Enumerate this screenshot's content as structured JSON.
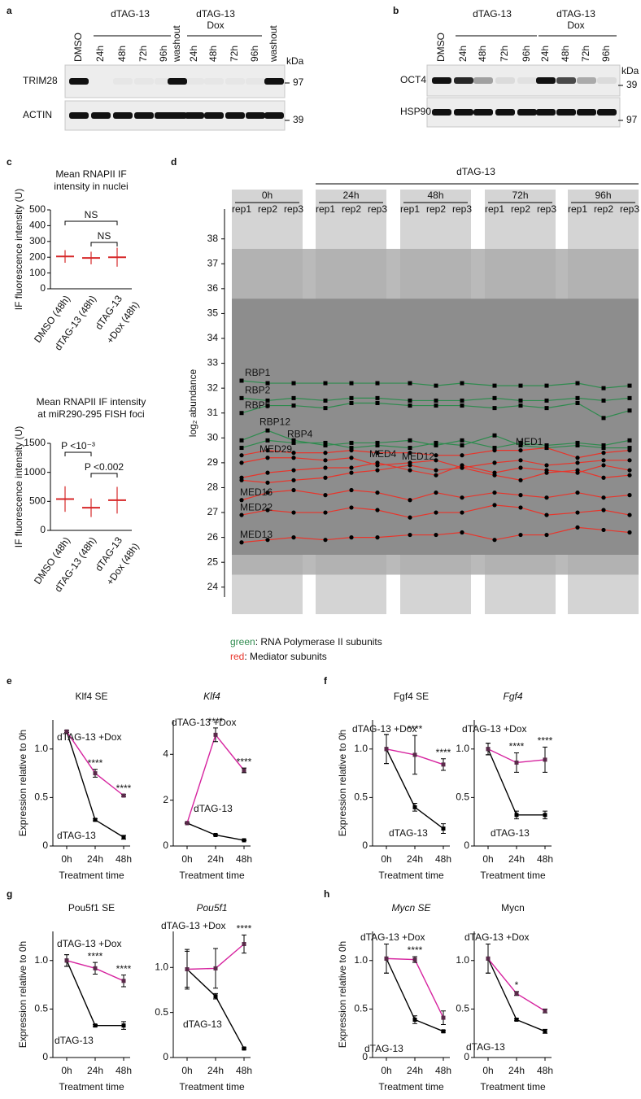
{
  "blots": [
    {
      "label": "a",
      "groups": [
        {
          "lines": [
            "dTAG-13"
          ]
        },
        {
          "lines": [
            "dTAG-13",
            "Dox"
          ]
        }
      ],
      "lanes": [
        "DMSO",
        "24h",
        "48h",
        "72h",
        "96h",
        "washout",
        "24h",
        "48h",
        "72h",
        "96h",
        "washout"
      ],
      "rows": [
        "TRIM28",
        "ACTIN"
      ],
      "unit": "kDa",
      "markers": [
        97,
        39
      ]
    },
    {
      "label": "b",
      "groups": [
        {
          "lines": [
            "dTAG-13"
          ]
        },
        {
          "lines": [
            "dTAG-13",
            "Dox"
          ]
        }
      ],
      "lanes": [
        "DMSO",
        "24h",
        "48h",
        "72h",
        "96h",
        "24h",
        "48h",
        "72h",
        "96h"
      ],
      "rows": [
        "OCT4",
        "HSP90"
      ],
      "unit": "kDa",
      "markers": [
        39,
        97
      ]
    }
  ],
  "panel_c": {
    "label": "c",
    "charts": [
      {
        "type": "dot_plot",
        "title": [
          "Mean RNAPII IF",
          "intensity in nuclei"
        ],
        "ylabel": "IF fluorescence intensity (U)",
        "categories": [
          [
            "DMSO (48h)"
          ],
          [
            "dTAG-13 (48h)"
          ],
          [
            "dTAG-13",
            "+Dox (48h)"
          ]
        ],
        "means": [
          205,
          195,
          200
        ],
        "sd": [
          40,
          40,
          60
        ],
        "color": "#d62728",
        "ylim": [
          0,
          500
        ],
        "yticks": [
          0,
          100,
          200,
          300,
          400,
          500
        ],
        "annotations": [
          "NS",
          "NS"
        ]
      },
      {
        "type": "dot_plot",
        "title": [
          "Mean RNAPII IF intensity",
          "at miR290-295 FISH foci"
        ],
        "ylabel": "IF fluorescence intensity (U)",
        "categories": [
          [
            "DMSO (48h)"
          ],
          [
            "dTAG-13 (48h)"
          ],
          [
            "dTAG-13",
            "+Dox (48h)"
          ]
        ],
        "means": [
          540,
          390,
          520
        ],
        "sd": [
          220,
          160,
          230
        ],
        "color": "#d62728",
        "ylim": [
          0,
          1500
        ],
        "yticks": [
          0,
          500,
          1000,
          1500
        ],
        "annotations": [
          "P <10⁻³",
          "P <0.002"
        ]
      }
    ]
  },
  "panel_d": {
    "label": "d",
    "type": "line",
    "treatment": "dTAG-13",
    "ylabel": "log₂ abundance",
    "groups": [
      {
        "name": "0h",
        "reps": [
          "rep1",
          "rep2",
          "rep3"
        ]
      },
      {
        "name": "24h",
        "reps": [
          "rep1",
          "rep2",
          "rep3"
        ]
      },
      {
        "name": "48h",
        "reps": [
          "rep1",
          "rep2",
          "rep3"
        ]
      },
      {
        "name": "72h",
        "reps": [
          "rep1",
          "rep2",
          "rep3"
        ]
      },
      {
        "name": "96h",
        "reps": [
          "rep1",
          "rep2",
          "rep3"
        ]
      }
    ],
    "ylim": [
      23.6,
      39.2
    ],
    "yticks": [
      24,
      25,
      26,
      27,
      28,
      29,
      30,
      31,
      32,
      33,
      34,
      35,
      36,
      37,
      38
    ],
    "series": [
      {
        "name": "RBP1",
        "color": "#2e8b4e",
        "marker": "square",
        "values": [
          32.3,
          32.2,
          32.2,
          32.2,
          32.2,
          32.2,
          32.2,
          32.1,
          32.2,
          32.1,
          32.1,
          32.1,
          32.2,
          32.0,
          32.1
        ]
      },
      {
        "name": "RBP2",
        "color": "#2e8b4e",
        "marker": "square",
        "values": [
          31.6,
          31.5,
          31.6,
          31.5,
          31.6,
          31.6,
          31.5,
          31.5,
          31.5,
          31.6,
          31.5,
          31.5,
          31.6,
          31.5,
          31.6
        ]
      },
      {
        "name": "RBP5",
        "color": "#2e8b4e",
        "marker": "square",
        "values": [
          31.0,
          31.3,
          31.3,
          31.2,
          31.4,
          31.4,
          31.3,
          31.3,
          31.3,
          31.2,
          31.3,
          31.2,
          31.4,
          30.8,
          31.1
        ]
      },
      {
        "name": "RBP12",
        "color": "#2e8b4e",
        "marker": "square",
        "values": [
          29.9,
          30.3,
          29.9,
          29.7,
          29.8,
          29.8,
          29.9,
          29.7,
          29.9,
          29.6,
          29.8,
          29.7,
          29.8,
          29.7,
          29.9
        ]
      },
      {
        "name": "RBP4",
        "color": "#2e8b4e",
        "marker": "square",
        "values": [
          29.6,
          29.9,
          29.8,
          29.8,
          29.6,
          29.7,
          29.6,
          29.8,
          29.7,
          30.1,
          29.7,
          29.6,
          29.7,
          29.6,
          29.6
        ]
      },
      {
        "name": "MED1",
        "color": "#e8352b",
        "marker": "circle",
        "values": [
          29.3,
          29.5,
          29.4,
          29.4,
          29.5,
          29.4,
          29.4,
          29.3,
          29.3,
          29.5,
          29.5,
          29.6,
          29.2,
          29.4,
          29.5
        ]
      },
      {
        "name": "MED29",
        "color": "#e8352b",
        "marker": "circle",
        "values": [
          29.0,
          29.2,
          29.2,
          29.1,
          29.2,
          28.9,
          29.0,
          29.1,
          28.8,
          29.0,
          29.1,
          28.9,
          29.0,
          29.1,
          29.1
        ]
      },
      {
        "name": "MED4",
        "color": "#e8352b",
        "marker": "circle",
        "values": [
          28.4,
          28.6,
          28.7,
          28.8,
          28.8,
          29.0,
          28.7,
          28.5,
          28.9,
          28.6,
          28.8,
          28.7,
          28.6,
          28.9,
          28.7
        ]
      },
      {
        "name": "MED12",
        "color": "#e8352b",
        "marker": "circle",
        "values": [
          28.3,
          28.2,
          28.3,
          28.4,
          28.6,
          28.7,
          28.9,
          28.7,
          28.8,
          28.5,
          28.3,
          28.6,
          28.7,
          28.4,
          28.5
        ]
      },
      {
        "name": "MED16",
        "color": "#e8352b",
        "marker": "circle",
        "values": [
          27.5,
          27.8,
          27.9,
          27.7,
          27.9,
          27.8,
          27.5,
          27.8,
          27.6,
          27.8,
          27.7,
          27.6,
          27.8,
          27.6,
          27.7
        ]
      },
      {
        "name": "MED22",
        "color": "#e8352b",
        "marker": "circle",
        "values": [
          26.9,
          27.1,
          27.0,
          27.0,
          27.2,
          27.1,
          26.8,
          27.0,
          27.0,
          27.3,
          27.2,
          26.9,
          27.0,
          27.1,
          26.9
        ]
      },
      {
        "name": "MED13",
        "color": "#e8352b",
        "marker": "circle",
        "values": [
          25.8,
          25.9,
          26.0,
          25.9,
          26.0,
          26.0,
          26.1,
          26.1,
          26.2,
          25.9,
          26.1,
          26.1,
          26.4,
          26.3,
          26.2
        ]
      }
    ],
    "legend": [
      {
        "key": "green",
        "text": ": RNA Polymerase II subunits",
        "color": "#2e8b4e"
      },
      {
        "key": "red",
        "text": ": Mediator subunits",
        "color": "#e8352b"
      }
    ]
  },
  "line_panels": [
    {
      "label": "e",
      "charts": [
        {
          "type": "line",
          "title": "Klf4 SE",
          "italic": false,
          "ylabel": "Expression relative to 0h",
          "xlabel": "Treatment time",
          "categories": [
            "0h",
            "24h",
            "48h"
          ],
          "ylim": [
            0,
            1.3
          ],
          "yticks": [
            0,
            0.5,
            {
              "value": 1,
              "label": "1.0"
            }
          ],
          "series": [
            {
              "name": "dTAG-13",
              "color": "#000000",
              "values": [
                1.18,
                0.27,
                0.09
              ],
              "errors": [
                0.01,
                0.01,
                0.02
              ]
            },
            {
              "name": "dTAG-13 +Dox",
              "color": "#d6249f",
              "values": [
                1.18,
                0.75,
                0.52
              ],
              "errors": [
                0.01,
                0.04,
                0.01
              ]
            }
          ],
          "annotations": [
            {
              "category": "24h",
              "text": "****"
            },
            {
              "category": "48h",
              "text": "****"
            }
          ]
        },
        {
          "type": "line",
          "title": "Klf4",
          "italic": true,
          "xlabel": "Treatment time",
          "categories": [
            "0h",
            "24h",
            "48h"
          ],
          "ylim": [
            0,
            5.5
          ],
          "yticks": [
            0,
            2,
            4
          ],
          "series": [
            {
              "name": "dTAG-13",
              "color": "#000000",
              "values": [
                1,
                0.48,
                0.25
              ],
              "errors": [
                0.02,
                0.02,
                0.02
              ]
            },
            {
              "name": "dTAG-13 +Dox",
              "color": "#d6249f",
              "values": [
                1,
                4.85,
                3.3
              ],
              "errors": [
                0.02,
                0.3,
                0.1
              ]
            }
          ],
          "annotations": [
            {
              "category": "24h",
              "text": "****"
            },
            {
              "category": "48h",
              "text": "****"
            }
          ]
        }
      ]
    },
    {
      "label": "f",
      "charts": [
        {
          "type": "line",
          "title": "Fgf4 SE",
          "italic": false,
          "ylabel": "Expression relative to 0h",
          "xlabel": "Treatment time",
          "categories": [
            "0h",
            "24h",
            "48h"
          ],
          "ylim": [
            0,
            1.3
          ],
          "yticks": [
            0,
            0.5,
            {
              "value": 1,
              "label": "1.0"
            }
          ],
          "series": [
            {
              "name": "dTAG-13",
              "color": "#000000",
              "values": [
                1.0,
                0.4,
                0.18
              ],
              "errors": [
                0.15,
                0.04,
                0.05
              ]
            },
            {
              "name": "dTAG-13 +Dox",
              "color": "#d6249f",
              "values": [
                1.0,
                0.94,
                0.84
              ],
              "errors": [
                0.15,
                0.2,
                0.06
              ]
            }
          ],
          "annotations": [
            {
              "category": "24h",
              "text": "****"
            },
            {
              "category": "48h",
              "text": "****"
            }
          ]
        },
        {
          "type": "line",
          "title": "Fgf4",
          "italic": true,
          "xlabel": "Treatment time",
          "categories": [
            "0h",
            "24h",
            "48h"
          ],
          "ylim": [
            0,
            1.3
          ],
          "yticks": [
            0,
            0.5,
            {
              "value": 1,
              "label": "1.0"
            }
          ],
          "series": [
            {
              "name": "dTAG-13",
              "color": "#000000",
              "values": [
                1.0,
                0.32,
                0.32
              ],
              "errors": [
                0.06,
                0.04,
                0.04
              ]
            },
            {
              "name": "dTAG-13 +Dox",
              "color": "#d6249f",
              "values": [
                1.0,
                0.86,
                0.89
              ],
              "errors": [
                0.06,
                0.1,
                0.13
              ]
            }
          ],
          "annotations": [
            {
              "category": "24h",
              "text": "****"
            },
            {
              "category": "48h",
              "text": "****"
            }
          ]
        }
      ]
    },
    {
      "label": "g",
      "charts": [
        {
          "type": "line",
          "title": "Pou5f1 SE",
          "italic": false,
          "ylabel": "Expression relative to 0h",
          "xlabel": "Treatment time",
          "categories": [
            "0h",
            "24h",
            "48h"
          ],
          "ylim": [
            0,
            1.3
          ],
          "yticks": [
            0,
            0.5,
            {
              "value": 1,
              "label": "1.0"
            }
          ],
          "series": [
            {
              "name": "dTAG-13",
              "color": "#000000",
              "values": [
                1.0,
                0.33,
                0.33
              ],
              "errors": [
                0.06,
                0.01,
                0.04
              ]
            },
            {
              "name": "dTAG-13 +Dox",
              "color": "#d6249f",
              "values": [
                1.0,
                0.92,
                0.79
              ],
              "errors": [
                0.06,
                0.06,
                0.06
              ]
            }
          ],
          "annotations": [
            {
              "category": "24h",
              "text": "****"
            },
            {
              "category": "48h",
              "text": "****"
            }
          ]
        },
        {
          "type": "line",
          "title": "Pou5f1",
          "italic": true,
          "xlabel": "Treatment time",
          "categories": [
            "0h",
            "24h",
            "48h"
          ],
          "ylim": [
            0,
            1.4
          ],
          "yticks": [
            0,
            0.5,
            {
              "value": 1,
              "label": "1.0"
            }
          ],
          "series": [
            {
              "name": "dTAG-13",
              "color": "#000000",
              "values": [
                0.98,
                0.68,
                0.1
              ],
              "errors": [
                0.2,
                0.03,
                0.01
              ]
            },
            {
              "name": "dTAG-13 +Dox",
              "color": "#d6249f",
              "values": [
                0.98,
                0.99,
                1.26
              ],
              "errors": [
                0.22,
                0.22,
                0.1
              ]
            }
          ],
          "annotations": [
            {
              "category": "48h",
              "text": "****"
            }
          ]
        }
      ]
    },
    {
      "label": "h",
      "charts": [
        {
          "type": "line",
          "title": "Mycn SE",
          "italic": true,
          "ylabel": "Expression relative to 0h",
          "xlabel": "Treatment time",
          "categories": [
            "0h",
            "24h",
            "48h"
          ],
          "ylim": [
            0,
            1.3
          ],
          "yticks": [
            0,
            0.5,
            {
              "value": 1,
              "label": "1.0"
            }
          ],
          "series": [
            {
              "name": "dTAG-13",
              "color": "#000000",
              "values": [
                1.02,
                0.39,
                0.27
              ],
              "errors": [
                0.15,
                0.04,
                0.01
              ]
            },
            {
              "name": "dTAG-13 +Dox",
              "color": "#d6249f",
              "values": [
                1.02,
                1.01,
                0.41
              ],
              "errors": [
                0.15,
                0.03,
                0.07
              ]
            }
          ],
          "annotations": [
            {
              "category": "24h",
              "text": "****"
            }
          ]
        },
        {
          "type": "line",
          "title": "Mycn",
          "italic": false,
          "xlabel": "Treatment time",
          "categories": [
            "0h",
            "24h",
            "48h"
          ],
          "ylim": [
            0,
            1.3
          ],
          "yticks": [
            0,
            0.5,
            {
              "value": 1,
              "label": "1.0"
            }
          ],
          "series": [
            {
              "name": "dTAG-13",
              "color": "#000000",
              "values": [
                1.02,
                0.39,
                0.27
              ],
              "errors": [
                0.15,
                0.01,
                0.02
              ]
            },
            {
              "name": "dTAG-13 +Dox",
              "color": "#d6249f",
              "values": [
                1.02,
                0.66,
                0.48
              ],
              "errors": [
                0.15,
                0.02,
                0.02
              ]
            }
          ],
          "annotations": [
            {
              "category": "24h",
              "text": "*"
            }
          ]
        }
      ]
    }
  ]
}
